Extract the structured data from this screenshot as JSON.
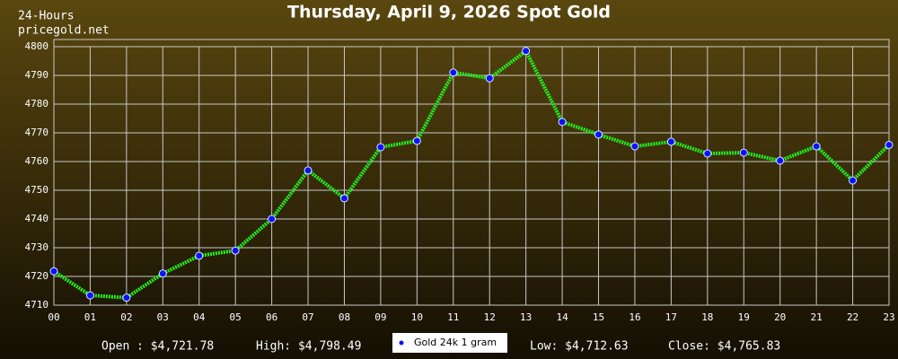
{
  "chart_data": {
    "type": "line",
    "title": "Thursday, April 9, 2026 Spot Gold",
    "subtitle": "24-Hours",
    "source": "pricegold.net",
    "categories": [
      "00",
      "01",
      "02",
      "03",
      "04",
      "05",
      "06",
      "07",
      "08",
      "09",
      "10",
      "11",
      "12",
      "13",
      "14",
      "15",
      "16",
      "17",
      "18",
      "19",
      "20",
      "21",
      "22",
      "23"
    ],
    "series": [
      {
        "name": "Gold 24k 1 gram",
        "color": "#22ee22",
        "marker_color": "#1010ff",
        "values": [
          4721.8,
          4713.4,
          4712.6,
          4721,
          4727.2,
          4729,
          4740,
          4756.9,
          4747.2,
          4765,
          4767.2,
          4791,
          4789,
          4798.5,
          4773.8,
          4769.4,
          4765.3,
          4766.9,
          4762.8,
          4763.1,
          4760.3,
          4765.3,
          4753.4,
          4765.8
        ]
      }
    ],
    "ylim": [
      4710,
      4800
    ],
    "yticks": [
      4710,
      4720,
      4730,
      4740,
      4750,
      4760,
      4770,
      4780,
      4790,
      4800
    ],
    "grid": true,
    "stats": [
      "Open : $4,721.78",
      "High: $4,798.49",
      "Low: $4,712.63",
      "Close: $4,765.83"
    ]
  }
}
